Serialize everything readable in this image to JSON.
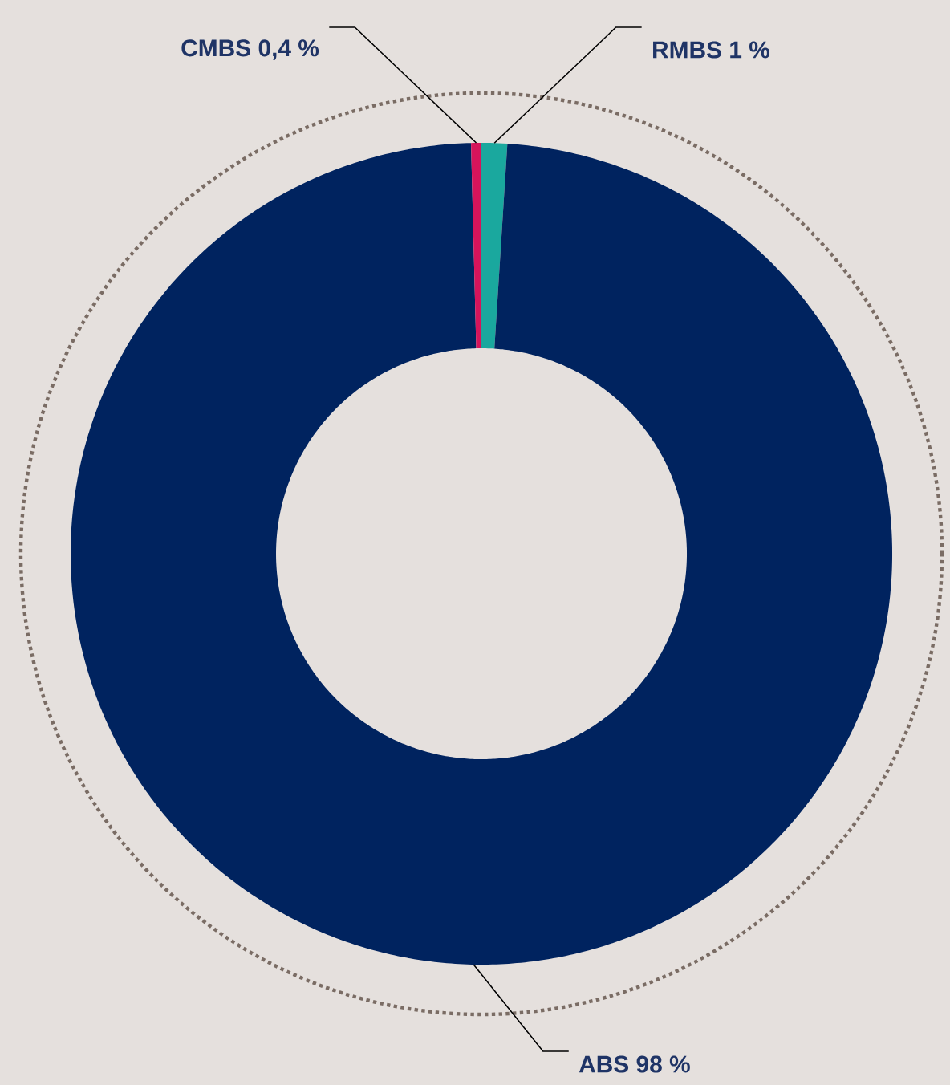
{
  "chart_data": {
    "type": "donut",
    "categories": [
      "RMBS",
      "ABS",
      "CMBS"
    ],
    "values": [
      1,
      98,
      0.4
    ],
    "colors": [
      "#1aa89e",
      "#00235f",
      "#d6145b"
    ],
    "value_labels": [
      "1 %",
      "98 %",
      "0,4 %"
    ]
  }
}
